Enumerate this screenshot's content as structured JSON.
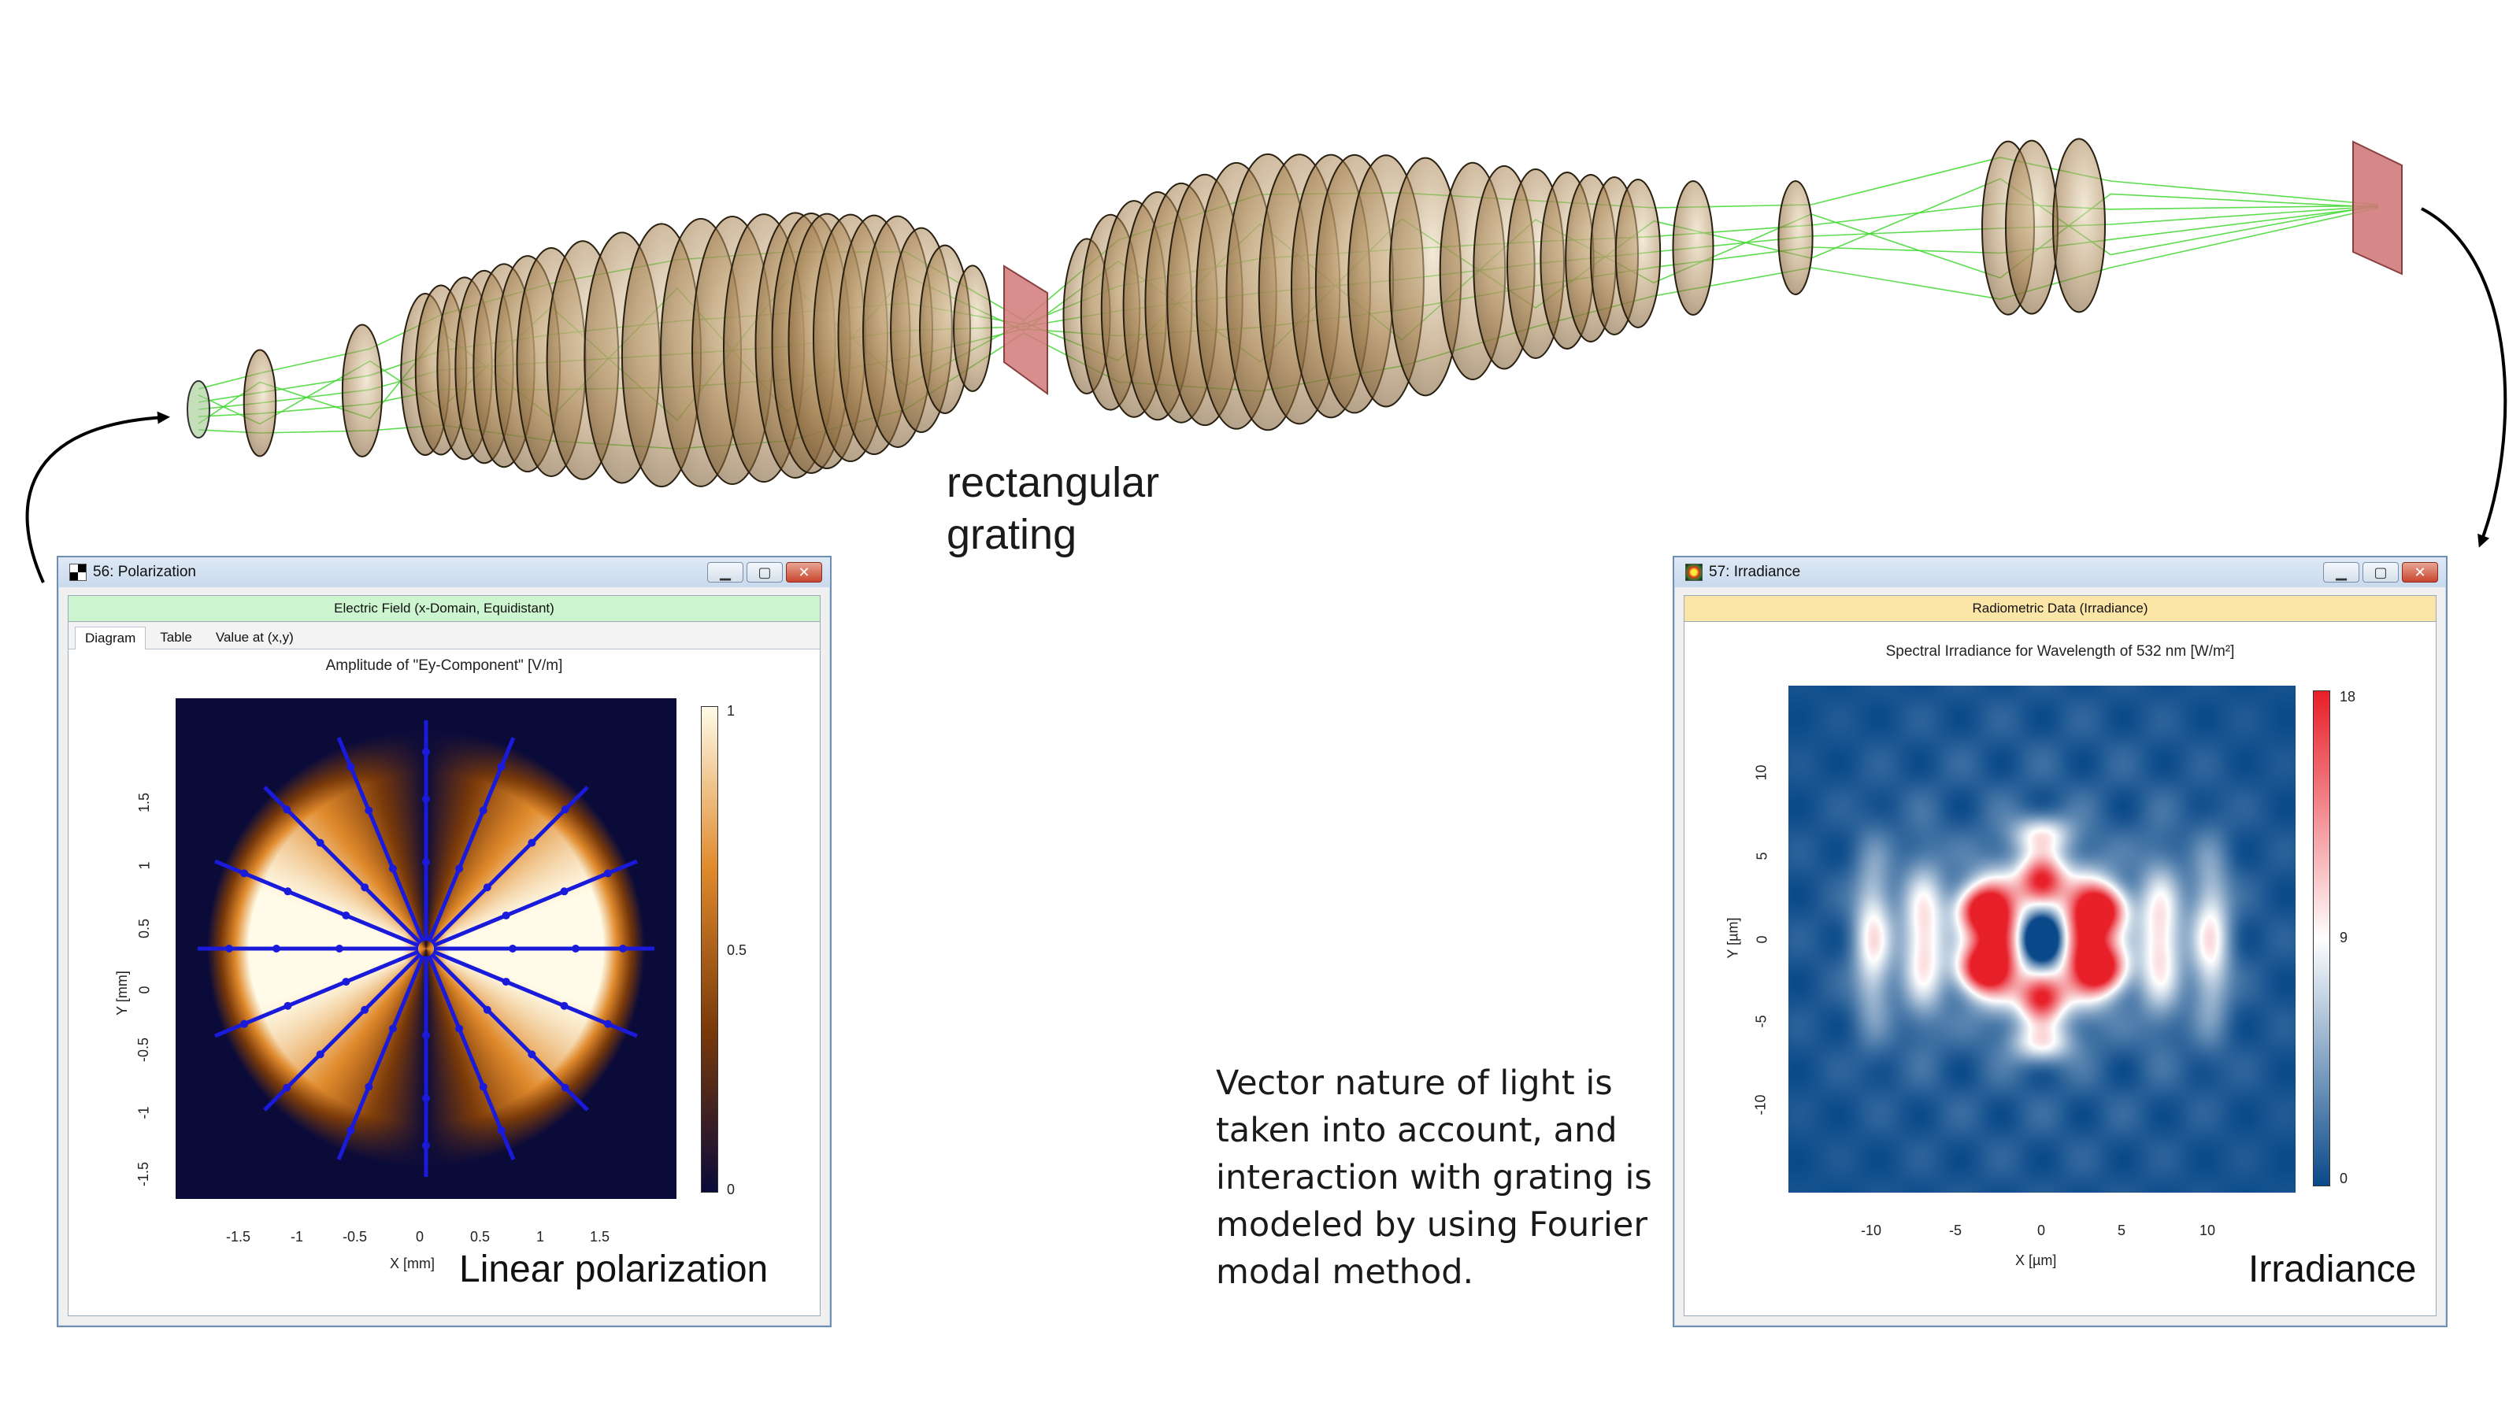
{
  "labels": {
    "grating": [
      "rectangular",
      "grating"
    ],
    "description": [
      "Vector nature of light is",
      "taken into account, and",
      "interaction with grating is",
      "modeled by using Fourier",
      "modal method."
    ]
  },
  "polarization_window": {
    "title": "56: Polarization",
    "header": "Electric Field (x-Domain, Equidistant)",
    "tabs": [
      "Diagram",
      "Table",
      "Value at (x,y)"
    ],
    "active_tab": "Diagram",
    "plot_title": "Amplitude of \"Ey-Component\"  [V/m]",
    "x_axis_label": "X [mm]",
    "y_axis_label": "Y [mm]",
    "x_ticks": [
      "-1.5",
      "-1",
      "-0.5",
      "0",
      "0.5",
      "1",
      "1.5"
    ],
    "y_ticks": [
      "1.5",
      "1",
      "0.5",
      "0",
      "-0.5",
      "-1",
      "-1.5"
    ],
    "colorbar_ticks": [
      "1",
      "0.5",
      "0"
    ],
    "caption": "Linear polarization",
    "colormap": [
      "#0b0b3a",
      "#7a3a0a",
      "#e08a2c",
      "#fffbe8"
    ],
    "vector_color": "#1a1adb",
    "accent_header_color": "#cdf5d0"
  },
  "irradiance_window": {
    "title": "57: Irradiance",
    "header": "Radiometric Data (Irradiance)",
    "plot_title": "Spectral Irradiance for Wavelength of 532 nm  [W/m²]",
    "x_axis_label": "X [µm]",
    "y_axis_label": "Y [µm]",
    "x_ticks": [
      "-10",
      "-5",
      "0",
      "5",
      "10"
    ],
    "y_ticks": [
      "10",
      "5",
      "0",
      "-5",
      "-10"
    ],
    "colorbar_ticks": [
      "18",
      "9",
      "0"
    ],
    "caption": "Irradiance",
    "colormap": [
      "#0b4a8a",
      "#ffffff",
      "#e8202a"
    ],
    "accent_header_color": "#fbe6a8"
  },
  "window_buttons": {
    "minimize": "minimize",
    "restore": "restore",
    "close": "close"
  },
  "colors": {
    "lens_fill": "#a07a4a",
    "ray_color": "#3fd72f",
    "grating_fill": "#d37a7a",
    "window_border": "#6f8fb3"
  }
}
